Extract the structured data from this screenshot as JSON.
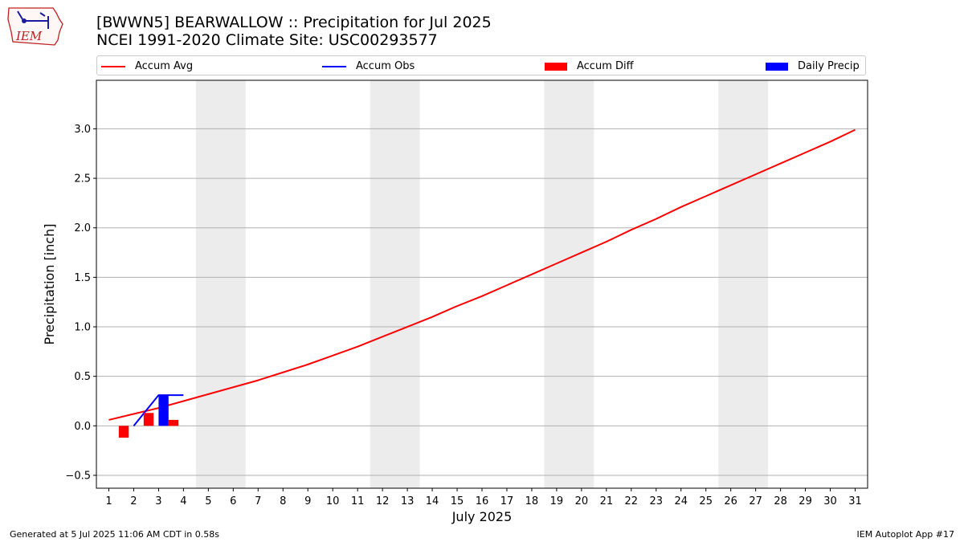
{
  "header": {
    "logo_text": "IEM",
    "title_line1": "[BWWN5] BEARWALLOW :: Precipitation for Jul 2025",
    "title_line2": "NCEI 1991-2020 Climate Site: USC00293577"
  },
  "legend": {
    "placement": "top",
    "items": [
      {
        "label": "Accum Avg",
        "kind": "line",
        "color": "#ff0000"
      },
      {
        "label": "Accum Obs",
        "kind": "line",
        "color": "#0000ff"
      },
      {
        "label": "Accum Diff",
        "kind": "bar",
        "color": "#ff0000"
      },
      {
        "label": "Daily Precip",
        "kind": "bar",
        "color": "#0000ff"
      }
    ]
  },
  "footer": {
    "left": "Generated at 5 Jul 2025 11:06 AM CDT in 0.58s",
    "right": "IEM Autoplot App #17"
  },
  "chart_data": {
    "type": "line",
    "xlabel": "July 2025",
    "ylabel": "Precipitation [inch]",
    "xlim": [
      0.5,
      31.5
    ],
    "ylim": [
      -0.63,
      3.49
    ],
    "x_ticks": [
      1,
      2,
      3,
      4,
      5,
      6,
      7,
      8,
      9,
      10,
      11,
      12,
      13,
      14,
      15,
      16,
      17,
      18,
      19,
      20,
      21,
      22,
      23,
      24,
      25,
      26,
      27,
      28,
      29,
      30,
      31
    ],
    "y_ticks": [
      -0.5,
      0.0,
      0.5,
      1.0,
      1.5,
      2.0,
      2.5,
      3.0
    ],
    "y_tick_labels": [
      "−0.5",
      "0.0",
      "0.5",
      "1.0",
      "1.5",
      "2.0",
      "2.5",
      "3.0"
    ],
    "grid": "horizontal",
    "weekend_shading": [
      [
        4.5,
        6.5
      ],
      [
        11.5,
        13.5
      ],
      [
        18.5,
        20.5
      ],
      [
        25.5,
        27.5
      ]
    ],
    "shading_color": "#ececec",
    "series": [
      {
        "name": "Accum Avg",
        "kind": "line",
        "color": "#ff0000",
        "x": [
          1,
          2,
          3,
          4,
          5,
          6,
          7,
          8,
          9,
          10,
          11,
          12,
          13,
          14,
          15,
          16,
          17,
          18,
          19,
          20,
          21,
          22,
          23,
          24,
          25,
          26,
          27,
          28,
          29,
          30,
          31
        ],
        "values": [
          0.06,
          0.12,
          0.18,
          0.25,
          0.32,
          0.39,
          0.46,
          0.54,
          0.62,
          0.71,
          0.8,
          0.9,
          1.0,
          1.1,
          1.21,
          1.31,
          1.42,
          1.53,
          1.64,
          1.75,
          1.86,
          1.98,
          2.09,
          2.21,
          2.32,
          2.43,
          2.54,
          2.65,
          2.76,
          2.87,
          2.99
        ]
      },
      {
        "name": "Accum Obs",
        "kind": "line",
        "color": "#0000ff",
        "x": [
          2,
          3,
          4
        ],
        "values": [
          0.0,
          0.31,
          0.31
        ]
      },
      {
        "name": "Accum Diff",
        "kind": "bar",
        "color": "#ff0000",
        "x": [
          2,
          3,
          4
        ],
        "values": [
          -0.12,
          0.13,
          0.06
        ]
      },
      {
        "name": "Daily Precip",
        "kind": "bar",
        "color": "#0000ff",
        "x": [
          3
        ],
        "values": [
          0.31
        ]
      }
    ]
  }
}
